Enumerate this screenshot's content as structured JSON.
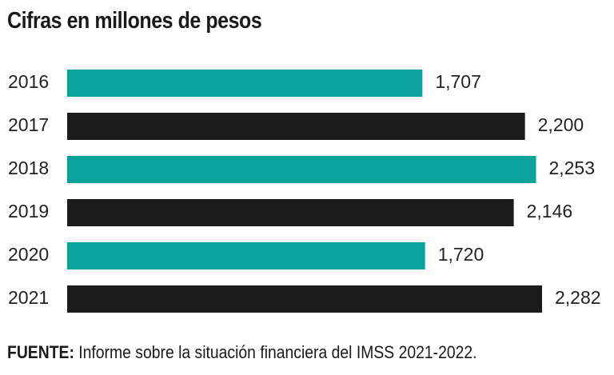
{
  "chart_data": {
    "type": "bar",
    "orientation": "horizontal",
    "title": "Cifras en millones de pesos",
    "categories": [
      "2016",
      "2017",
      "2018",
      "2019",
      "2020",
      "2021"
    ],
    "values": [
      1707,
      2200,
      2253,
      2146,
      1720,
      2282
    ],
    "value_labels": [
      "1,707",
      "2,200",
      "2,253",
      "2,146",
      "1,720",
      "2,282"
    ],
    "xlim": [
      0,
      2282
    ],
    "grid": false,
    "legend": "none",
    "colors": {
      "teal": "#0aa39b",
      "black": "#1b1b1b"
    },
    "bar_colors": [
      "teal",
      "black",
      "teal",
      "black",
      "teal",
      "black"
    ]
  },
  "source": {
    "label": "FUENTE:",
    "text": " Informe sobre la situación financiera del IMSS 2021-2022."
  }
}
